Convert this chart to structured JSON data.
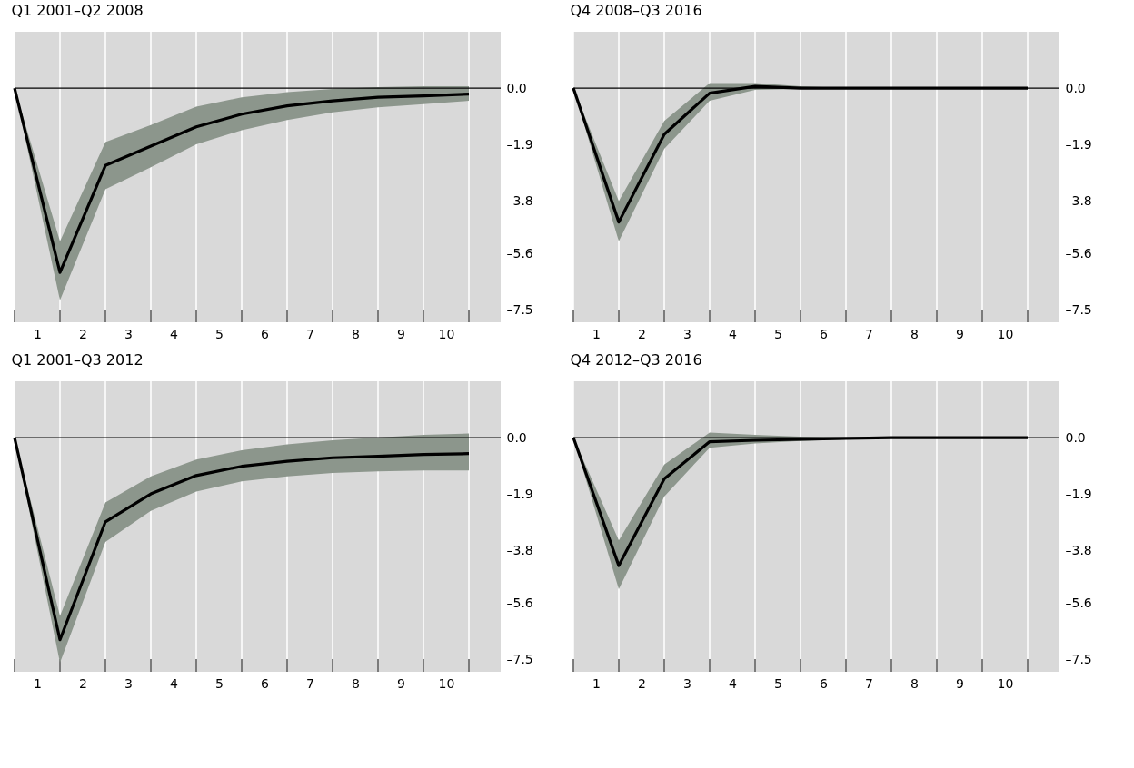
{
  "chart_data": [
    {
      "type": "line",
      "title": "Q1 2001–Q2 2008",
      "x": [
        0,
        1,
        2,
        3,
        4,
        5,
        6,
        7,
        8,
        9,
        10
      ],
      "xlim": [
        0,
        10.7
      ],
      "ylim": [
        -7.9,
        1.9
      ],
      "xticks": [
        {
          "value": 0,
          "label": null
        },
        {
          "value": 0.5,
          "label": "1"
        },
        {
          "value": 1,
          "label": null
        },
        {
          "value": 1.5,
          "label": "2"
        },
        {
          "value": 2,
          "label": null
        },
        {
          "value": 2.5,
          "label": "3"
        },
        {
          "value": 3,
          "label": null
        },
        {
          "value": 3.5,
          "label": "4"
        },
        {
          "value": 4,
          "label": null
        },
        {
          "value": 4.5,
          "label": "5"
        },
        {
          "value": 5,
          "label": null
        },
        {
          "value": 5.5,
          "label": "6"
        },
        {
          "value": 6,
          "label": null
        },
        {
          "value": 6.5,
          "label": "7"
        },
        {
          "value": 7,
          "label": null
        },
        {
          "value": 7.5,
          "label": "8"
        },
        {
          "value": 8,
          "label": null
        },
        {
          "value": 8.5,
          "label": "9"
        },
        {
          "value": 9,
          "label": null
        },
        {
          "value": 9.5,
          "label": "10"
        },
        {
          "value": 10,
          "label": null
        }
      ],
      "yticks": [
        {
          "value": 0,
          "label": "0.0"
        },
        {
          "value": -1.9,
          "label": "–1.9"
        },
        {
          "value": -3.8,
          "label": "–3.8"
        },
        {
          "value": -5.6,
          "label": "–5.6"
        },
        {
          "value": -7.5,
          "label": "–7.5"
        }
      ],
      "grid": "x",
      "marker": "none",
      "line_style": "solid",
      "ref_lines": [
        {
          "axis": "y",
          "value": 0,
          "color": "#000000"
        }
      ],
      "series": [
        {
          "color": "#000000",
          "values": [
            0,
            -6.22,
            -2.61,
            -1.96,
            -1.31,
            -0.88,
            -0.6,
            -0.43,
            -0.31,
            -0.26,
            -0.2
          ],
          "upper": [
            0,
            -5.17,
            -1.82,
            -1.25,
            -0.63,
            -0.31,
            -0.14,
            -0.03,
            0.03,
            0.06,
            0.06
          ],
          "lower": [
            0,
            -7.16,
            -3.41,
            -2.67,
            -1.9,
            -1.42,
            -1.08,
            -0.82,
            -0.65,
            -0.54,
            -0.43
          ]
        }
      ]
    },
    {
      "type": "line",
      "title": "Q4 2008–Q3 2016",
      "x": [
        0,
        1,
        2,
        3,
        4,
        5,
        6,
        7,
        8,
        9,
        10
      ],
      "xlim": [
        0,
        10.7
      ],
      "ylim": [
        -7.9,
        1.9
      ],
      "xticks": [
        {
          "value": 0,
          "label": null
        },
        {
          "value": 0.5,
          "label": "1"
        },
        {
          "value": 1,
          "label": null
        },
        {
          "value": 1.5,
          "label": "2"
        },
        {
          "value": 2,
          "label": null
        },
        {
          "value": 2.5,
          "label": "3"
        },
        {
          "value": 3,
          "label": null
        },
        {
          "value": 3.5,
          "label": "4"
        },
        {
          "value": 4,
          "label": null
        },
        {
          "value": 4.5,
          "label": "5"
        },
        {
          "value": 5,
          "label": null
        },
        {
          "value": 5.5,
          "label": "6"
        },
        {
          "value": 6,
          "label": null
        },
        {
          "value": 6.5,
          "label": "7"
        },
        {
          "value": 7,
          "label": null
        },
        {
          "value": 7.5,
          "label": "8"
        },
        {
          "value": 8,
          "label": null
        },
        {
          "value": 8.5,
          "label": "9"
        },
        {
          "value": 9,
          "label": null
        },
        {
          "value": 9.5,
          "label": "10"
        },
        {
          "value": 10,
          "label": null
        }
      ],
      "yticks": [
        {
          "value": 0,
          "label": "0.0"
        },
        {
          "value": -1.9,
          "label": "–1.9"
        },
        {
          "value": -3.8,
          "label": "–3.8"
        },
        {
          "value": -5.6,
          "label": "–5.6"
        },
        {
          "value": -7.5,
          "label": "–7.5"
        }
      ],
      "grid": "x",
      "marker": "none",
      "line_style": "solid",
      "ref_lines": [
        {
          "axis": "y",
          "value": 0,
          "color": "#000000"
        }
      ],
      "series": [
        {
          "color": "#000000",
          "values": [
            0,
            -4.52,
            -1.56,
            -0.17,
            0.06,
            0,
            0,
            0,
            0,
            0,
            0
          ],
          "upper": [
            0,
            -3.81,
            -1.11,
            0.17,
            0.17,
            0.06,
            0,
            0,
            0,
            0,
            0
          ],
          "lower": [
            0,
            -5.17,
            -2.05,
            -0.43,
            -0.06,
            -0.03,
            0,
            0,
            0,
            0,
            0
          ]
        }
      ]
    },
    {
      "type": "line",
      "title": "Q1 2001–Q3 2012",
      "x": [
        0,
        1,
        2,
        3,
        4,
        5,
        6,
        7,
        8,
        9,
        10
      ],
      "xlim": [
        0,
        10.7
      ],
      "ylim": [
        -7.9,
        1.9
      ],
      "xticks": [
        {
          "value": 0,
          "label": null
        },
        {
          "value": 0.5,
          "label": "1"
        },
        {
          "value": 1,
          "label": null
        },
        {
          "value": 1.5,
          "label": "2"
        },
        {
          "value": 2,
          "label": null
        },
        {
          "value": 2.5,
          "label": "3"
        },
        {
          "value": 3,
          "label": null
        },
        {
          "value": 3.5,
          "label": "4"
        },
        {
          "value": 4,
          "label": null
        },
        {
          "value": 4.5,
          "label": "5"
        },
        {
          "value": 5,
          "label": null
        },
        {
          "value": 5.5,
          "label": "6"
        },
        {
          "value": 6,
          "label": null
        },
        {
          "value": 6.5,
          "label": "7"
        },
        {
          "value": 7,
          "label": null
        },
        {
          "value": 7.5,
          "label": "8"
        },
        {
          "value": 8,
          "label": null
        },
        {
          "value": 8.5,
          "label": "9"
        },
        {
          "value": 9,
          "label": null
        },
        {
          "value": 9.5,
          "label": "10"
        },
        {
          "value": 10,
          "label": null
        }
      ],
      "yticks": [
        {
          "value": 0,
          "label": "0.0"
        },
        {
          "value": -1.9,
          "label": "–1.9"
        },
        {
          "value": -3.8,
          "label": "–3.8"
        },
        {
          "value": -5.6,
          "label": "–5.6"
        },
        {
          "value": -7.5,
          "label": "–7.5"
        }
      ],
      "grid": "x",
      "marker": "none",
      "line_style": "solid",
      "ref_lines": [
        {
          "axis": "y",
          "value": 0,
          "color": "#000000"
        }
      ],
      "series": [
        {
          "color": "#000000",
          "values": [
            0,
            -6.82,
            -2.84,
            -1.9,
            -1.28,
            -0.97,
            -0.8,
            -0.68,
            -0.63,
            -0.57,
            -0.54
          ],
          "upper": [
            0,
            -6.02,
            -2.19,
            -1.31,
            -0.74,
            -0.43,
            -0.23,
            -0.09,
            0,
            0.09,
            0.14
          ],
          "lower": [
            0,
            -7.59,
            -3.52,
            -2.47,
            -1.82,
            -1.48,
            -1.31,
            -1.19,
            -1.14,
            -1.11,
            -1.11
          ]
        }
      ]
    },
    {
      "type": "line",
      "title": "Q4 2012–Q3 2016",
      "x": [
        0,
        1,
        2,
        3,
        4,
        5,
        6,
        7,
        8,
        9,
        10
      ],
      "xlim": [
        0,
        10.7
      ],
      "ylim": [
        -7.9,
        1.9
      ],
      "xticks": [
        {
          "value": 0,
          "label": null
        },
        {
          "value": 0.5,
          "label": "1"
        },
        {
          "value": 1,
          "label": null
        },
        {
          "value": 1.5,
          "label": "2"
        },
        {
          "value": 2,
          "label": null
        },
        {
          "value": 2.5,
          "label": "3"
        },
        {
          "value": 3,
          "label": null
        },
        {
          "value": 3.5,
          "label": "4"
        },
        {
          "value": 4,
          "label": null
        },
        {
          "value": 4.5,
          "label": "5"
        },
        {
          "value": 5,
          "label": null
        },
        {
          "value": 5.5,
          "label": "6"
        },
        {
          "value": 6,
          "label": null
        },
        {
          "value": 6.5,
          "label": "7"
        },
        {
          "value": 7,
          "label": null
        },
        {
          "value": 7.5,
          "label": "8"
        },
        {
          "value": 8,
          "label": null
        },
        {
          "value": 8.5,
          "label": "9"
        },
        {
          "value": 9,
          "label": null
        },
        {
          "value": 9.5,
          "label": "10"
        },
        {
          "value": 10,
          "label": null
        }
      ],
      "yticks": [
        {
          "value": 0,
          "label": "0.0"
        },
        {
          "value": -1.9,
          "label": "–1.9"
        },
        {
          "value": -3.8,
          "label": "–3.8"
        },
        {
          "value": -5.6,
          "label": "–5.6"
        },
        {
          "value": -7.5,
          "label": "–7.5"
        }
      ],
      "grid": "x",
      "marker": "none",
      "line_style": "solid",
      "ref_lines": [
        {
          "axis": "y",
          "value": 0,
          "color": "#000000"
        }
      ],
      "series": [
        {
          "color": "#000000",
          "values": [
            0,
            -4.32,
            -1.39,
            -0.14,
            -0.09,
            -0.06,
            -0.03,
            0,
            0,
            0,
            0
          ],
          "upper": [
            0,
            -3.47,
            -0.91,
            0.17,
            0.09,
            0.03,
            0,
            0,
            0,
            0,
            0
          ],
          "lower": [
            0,
            -5.11,
            -1.99,
            -0.34,
            -0.2,
            -0.11,
            -0.06,
            -0.03,
            0,
            0,
            0
          ]
        }
      ]
    }
  ]
}
